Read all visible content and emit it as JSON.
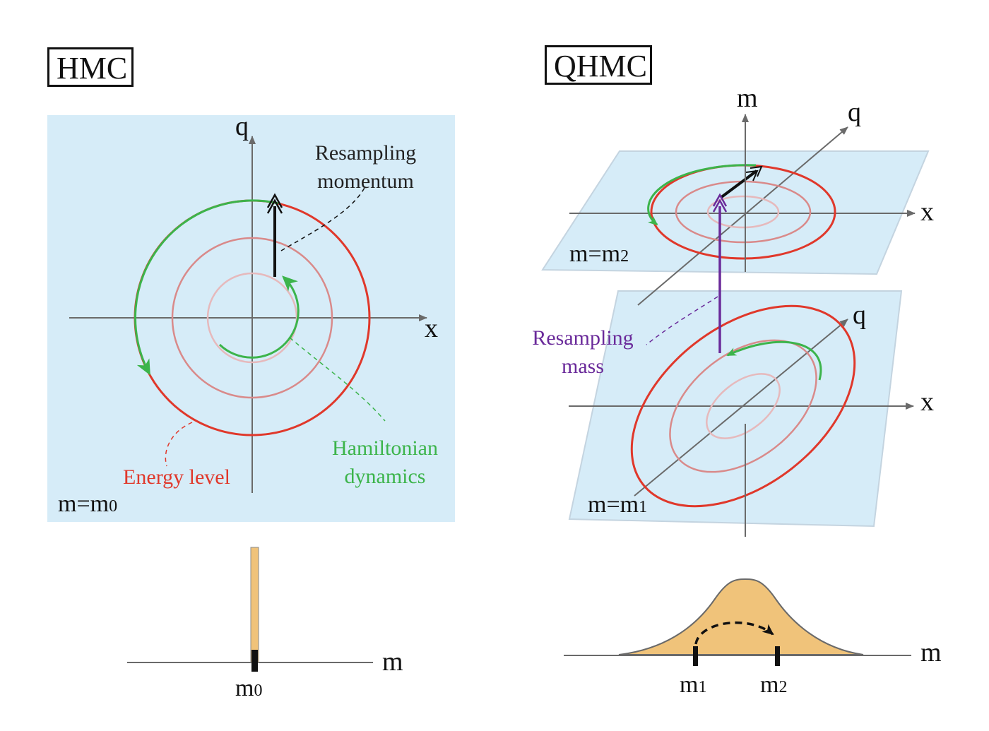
{
  "hmc": {
    "title": "HMC",
    "axis_q": "q",
    "axis_x": "x",
    "resample_label_line1": "Resampling",
    "resample_label_line2": "momentum",
    "energy_label": "Energy level",
    "dynamics_label_line1": "Hamiltonian",
    "dynamics_label_line2": "dynamics",
    "plane_label_main": "m=m",
    "plane_label_sub": "0",
    "mass_axis": "m",
    "mass_tick_main": "m",
    "mass_tick_sub": "0"
  },
  "qhmc": {
    "title": "QHMC",
    "axis_m": "m",
    "upper_axis_q": "q",
    "upper_axis_x": "x",
    "upper_plane_main": "m=m",
    "upper_plane_sub": "2",
    "lower_axis_q": "q",
    "lower_axis_x": "x",
    "lower_plane_main": "m=m",
    "lower_plane_sub": "1",
    "resample_label_line1": "Resampling",
    "resample_label_line2": "mass",
    "mass_axis": "m",
    "tick1_main": "m",
    "tick1_sub": "1",
    "tick2_main": "m",
    "tick2_sub": "2"
  },
  "colors": {
    "plane": "#d6ecf8",
    "energy_red": "#e0382b",
    "mid_ring": "#d98a8a",
    "inner_ring": "#e6b9bc",
    "dynamics_green": "#3cb44b",
    "resample_purple": "#6a2a9a",
    "distribution": "#f0c37a"
  }
}
